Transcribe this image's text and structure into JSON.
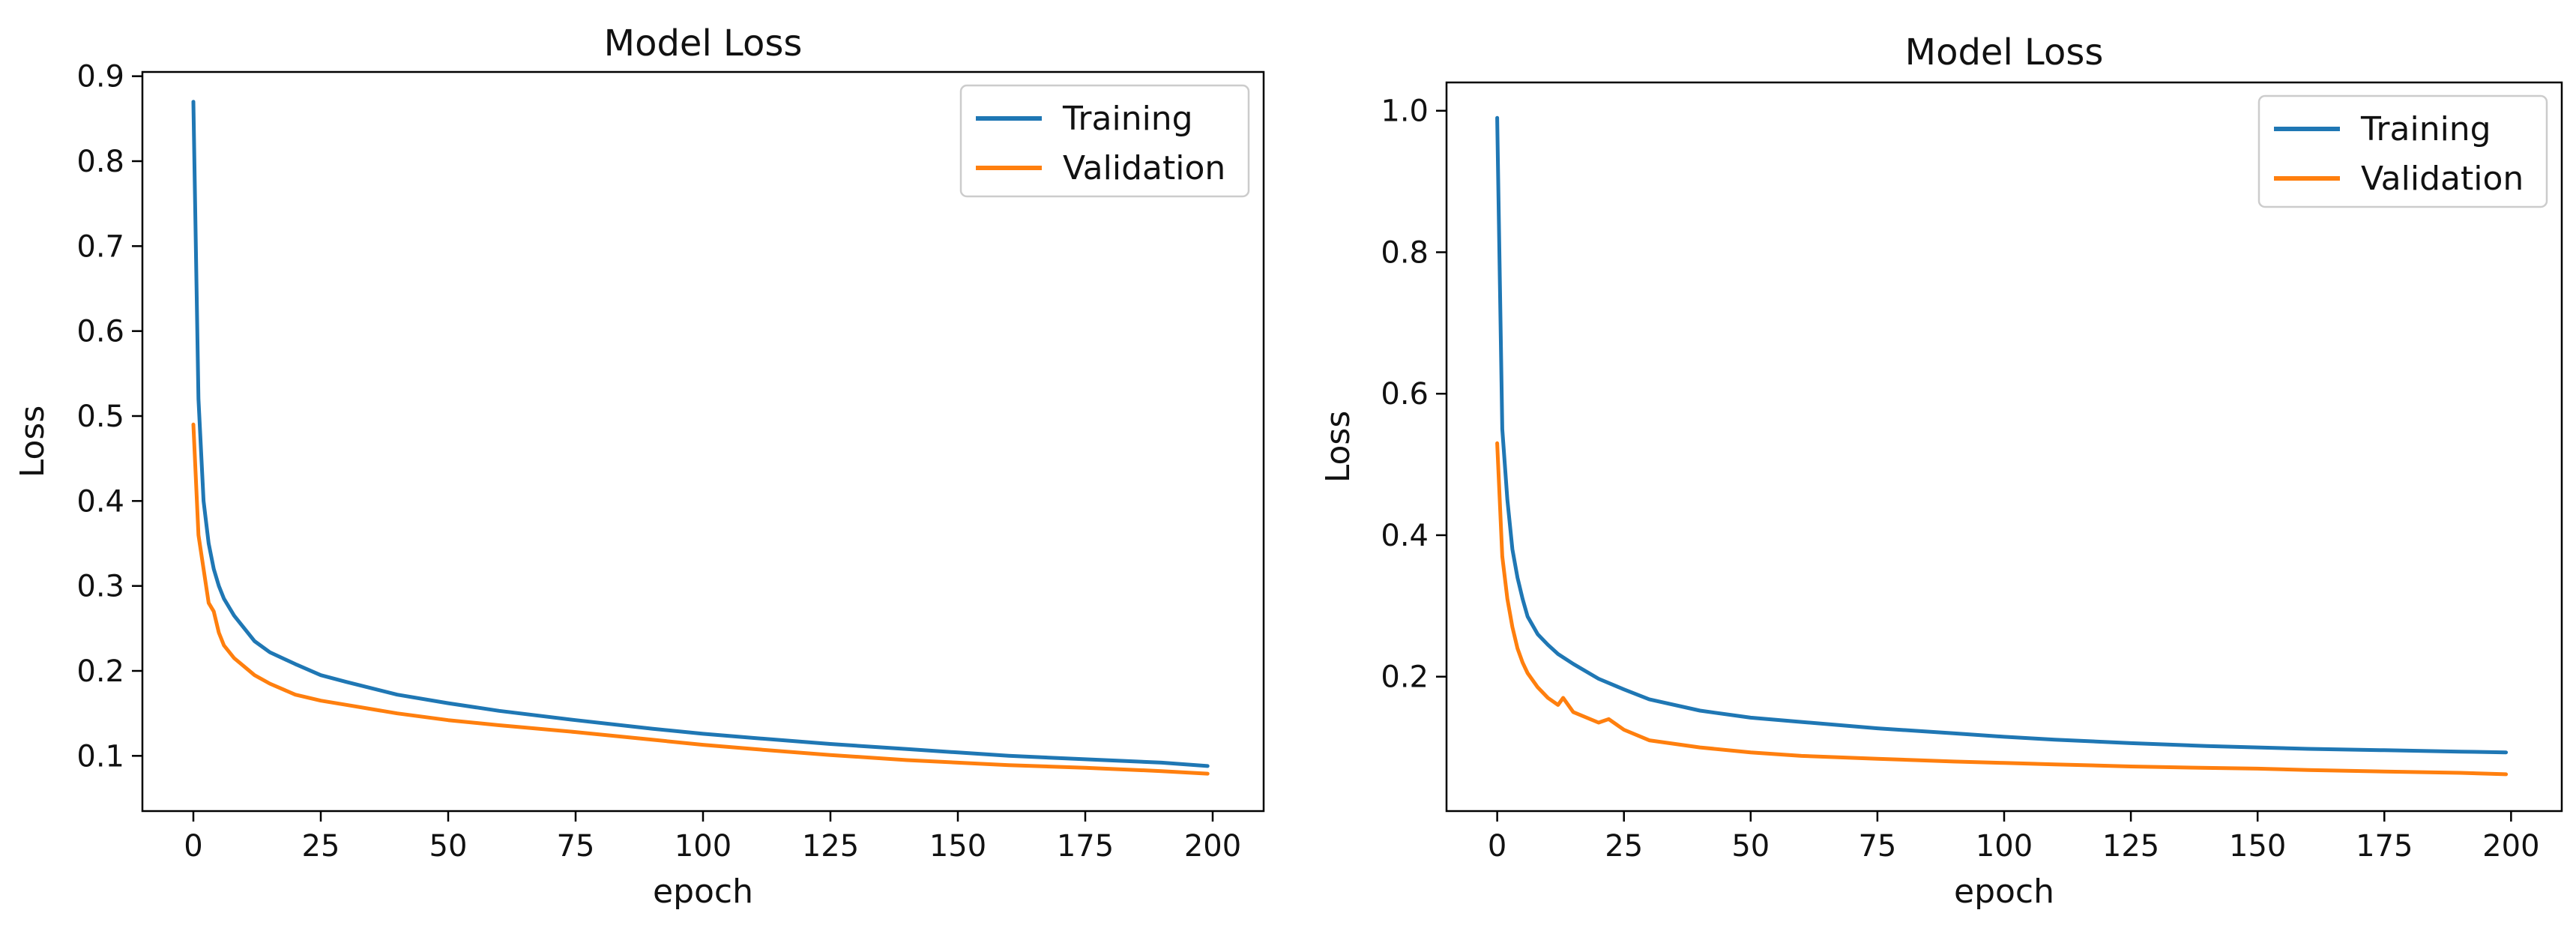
{
  "chart_data": [
    {
      "type": "line",
      "title": "Model Loss",
      "xlabel": "epoch",
      "ylabel": "Loss",
      "xlim": [
        -10,
        210
      ],
      "ylim": [
        0.035,
        0.905
      ],
      "xticks": [
        0,
        25,
        50,
        75,
        100,
        125,
        150,
        175,
        200
      ],
      "xtick_labels": [
        "0",
        "25",
        "50",
        "75",
        "100",
        "125",
        "150",
        "175",
        "200"
      ],
      "yticks": [
        0.1,
        0.2,
        0.3,
        0.4,
        0.5,
        0.6,
        0.7,
        0.8,
        0.9
      ],
      "ytick_labels": [
        "0.1",
        "0.2",
        "0.3",
        "0.4",
        "0.5",
        "0.6",
        "0.7",
        "0.8",
        "0.9"
      ],
      "grid": false,
      "legend": "top-right",
      "series": [
        {
          "name": "Training",
          "color": "#1f77b4",
          "x": [
            0,
            1,
            2,
            3,
            4,
            5,
            6,
            8,
            10,
            12,
            15,
            20,
            25,
            30,
            40,
            50,
            60,
            75,
            90,
            100,
            110,
            125,
            140,
            150,
            160,
            175,
            190,
            199
          ],
          "y": [
            0.87,
            0.52,
            0.4,
            0.35,
            0.32,
            0.3,
            0.285,
            0.265,
            0.25,
            0.235,
            0.222,
            0.208,
            0.195,
            0.187,
            0.172,
            0.162,
            0.153,
            0.142,
            0.132,
            0.126,
            0.121,
            0.114,
            0.108,
            0.104,
            0.1,
            0.096,
            0.092,
            0.088
          ]
        },
        {
          "name": "Validation",
          "color": "#ff7f0e",
          "x": [
            0,
            1,
            2,
            3,
            4,
            5,
            6,
            8,
            10,
            12,
            15,
            20,
            25,
            30,
            40,
            50,
            60,
            75,
            90,
            100,
            110,
            125,
            140,
            150,
            160,
            175,
            190,
            199
          ],
          "y": [
            0.49,
            0.36,
            0.32,
            0.28,
            0.27,
            0.245,
            0.23,
            0.215,
            0.205,
            0.195,
            0.185,
            0.172,
            0.165,
            0.16,
            0.15,
            0.142,
            0.136,
            0.128,
            0.119,
            0.113,
            0.108,
            0.101,
            0.095,
            0.092,
            0.089,
            0.086,
            0.082,
            0.079
          ]
        }
      ]
    },
    {
      "type": "line",
      "title": "Model Loss",
      "xlabel": "epoch",
      "ylabel": "Loss",
      "xlim": [
        -10,
        210
      ],
      "ylim": [
        0.01,
        1.04
      ],
      "xticks": [
        0,
        25,
        50,
        75,
        100,
        125,
        150,
        175,
        200
      ],
      "xtick_labels": [
        "0",
        "25",
        "50",
        "75",
        "100",
        "125",
        "150",
        "175",
        "200"
      ],
      "yticks": [
        0.2,
        0.4,
        0.6,
        0.8,
        1.0
      ],
      "ytick_labels": [
        "0.2",
        "0.4",
        "0.6",
        "0.8",
        "1.0"
      ],
      "grid": false,
      "legend": "top-right",
      "series": [
        {
          "name": "Training",
          "color": "#1f77b4",
          "x": [
            0,
            1,
            2,
            3,
            4,
            5,
            6,
            8,
            10,
            12,
            15,
            20,
            25,
            30,
            40,
            50,
            60,
            75,
            90,
            100,
            110,
            125,
            140,
            150,
            160,
            175,
            190,
            199
          ],
          "y": [
            0.99,
            0.55,
            0.45,
            0.38,
            0.34,
            0.31,
            0.285,
            0.26,
            0.245,
            0.232,
            0.218,
            0.197,
            0.182,
            0.168,
            0.152,
            0.142,
            0.136,
            0.127,
            0.12,
            0.115,
            0.111,
            0.106,
            0.102,
            0.1,
            0.098,
            0.096,
            0.094,
            0.093
          ]
        },
        {
          "name": "Validation",
          "color": "#ff7f0e",
          "x": [
            0,
            1,
            2,
            3,
            4,
            5,
            6,
            8,
            10,
            12,
            13,
            15,
            20,
            22,
            25,
            30,
            40,
            50,
            60,
            75,
            90,
            100,
            110,
            125,
            140,
            150,
            160,
            175,
            190,
            199
          ],
          "y": [
            0.53,
            0.37,
            0.31,
            0.27,
            0.24,
            0.22,
            0.205,
            0.185,
            0.17,
            0.16,
            0.17,
            0.15,
            0.135,
            0.14,
            0.125,
            0.11,
            0.1,
            0.093,
            0.088,
            0.084,
            0.08,
            0.078,
            0.076,
            0.073,
            0.071,
            0.07,
            0.068,
            0.066,
            0.064,
            0.062
          ]
        }
      ]
    }
  ]
}
